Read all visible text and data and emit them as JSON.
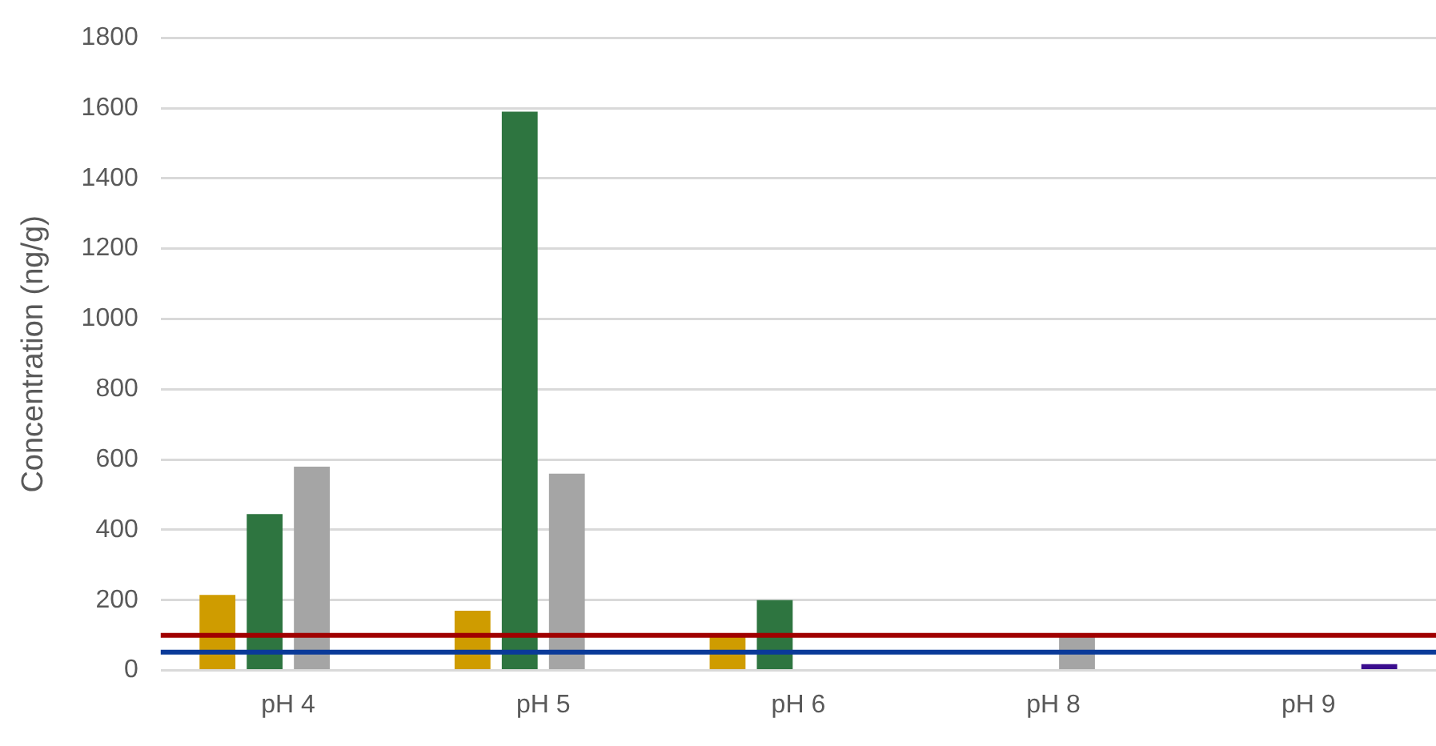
{
  "chart_data": {
    "type": "bar",
    "ylabel": "Concentration (ng/g)",
    "categories": [
      "pH 4",
      "pH 5",
      "pH 6",
      "pH 8",
      "pH 9"
    ],
    "series": [
      {
        "color": "#cf9c00",
        "values": [
          215,
          170,
          95,
          null,
          null
        ]
      },
      {
        "color": "#2e7540",
        "values": [
          445,
          1590,
          200,
          null,
          null
        ]
      },
      {
        "color": "#a5a5a5",
        "values": [
          580,
          560,
          null,
          95,
          null
        ]
      },
      {
        "color": "#3a0d8e",
        "values": [
          null,
          null,
          null,
          null,
          18
        ]
      }
    ],
    "ylim": [
      0,
      1800
    ],
    "yticks": [
      0,
      200,
      400,
      600,
      800,
      1000,
      1200,
      1400,
      1600,
      1800
    ],
    "grid": "y",
    "ref_lines": [
      {
        "axis": "y",
        "value": 100,
        "color": "#a00000"
      },
      {
        "axis": "y",
        "value": 52,
        "color": "#0a3a99"
      }
    ]
  }
}
